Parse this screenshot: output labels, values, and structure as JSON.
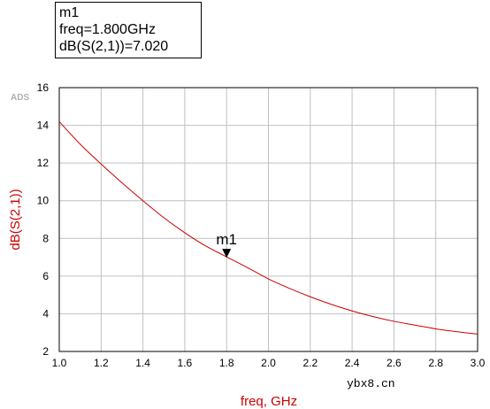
{
  "marker_box": {
    "name": "m1",
    "freq_line": "freq=1.800GHz",
    "value_line": "dB(S(2,1))=7.020"
  },
  "branding": "ADS",
  "watermark": "ybx8.cn",
  "colors": {
    "trace": "#cc0000",
    "axis_title": "#cc0000",
    "grid": "#c0c0c0",
    "frame": "#000000"
  },
  "chart_data": {
    "type": "line",
    "title": "",
    "xlabel": "freq, GHz",
    "ylabel": "dB(S(2,1))",
    "xlim": [
      1.0,
      3.0
    ],
    "ylim": [
      2,
      16
    ],
    "grid": true,
    "x_ticks": [
      "1.0",
      "1.2",
      "1.4",
      "1.6",
      "1.8",
      "2.0",
      "2.2",
      "2.4",
      "2.6",
      "2.8",
      "3.0"
    ],
    "y_ticks": [
      "2",
      "4",
      "6",
      "8",
      "10",
      "12",
      "14",
      "16"
    ],
    "series": [
      {
        "x": [
          1.0,
          1.1,
          1.2,
          1.3,
          1.4,
          1.5,
          1.6,
          1.7,
          1.8,
          1.9,
          2.0,
          2.1,
          2.2,
          2.3,
          2.4,
          2.5,
          2.6,
          2.7,
          2.8,
          2.9,
          3.0
        ],
        "y": [
          14.2,
          13.0,
          11.95,
          10.95,
          10.0,
          9.1,
          8.3,
          7.6,
          7.02,
          6.45,
          5.85,
          5.35,
          4.9,
          4.5,
          4.15,
          3.85,
          3.6,
          3.4,
          3.2,
          3.05,
          2.92
        ]
      }
    ],
    "markers": [
      {
        "name": "m1",
        "x": 1.8,
        "y": 7.02
      }
    ]
  }
}
